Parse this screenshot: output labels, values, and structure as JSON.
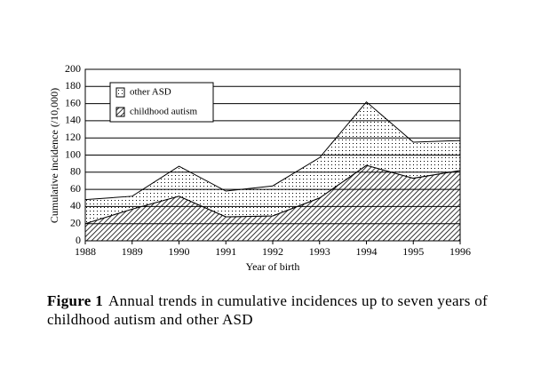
{
  "chart_data": {
    "type": "stacked-area",
    "y_label": "Cumulative incidence (/10,000)",
    "x_label": "Year of birth",
    "caption_label": "Figure 1",
    "title": "Annual trends in cumulative incidences up to seven years of childhood autism and other ASD",
    "x": [
      1988,
      1989,
      1990,
      1991,
      1992,
      1993,
      1994,
      1995,
      1996
    ],
    "series": [
      {
        "name": "childhood autism",
        "color": "#000000",
        "pattern": "hatch",
        "values": [
          20,
          37,
          52,
          28,
          29,
          50,
          88,
          73,
          82
        ]
      },
      {
        "name": "other ASD",
        "color": "#000000",
        "pattern": "dots",
        "values": [
          28,
          15,
          35,
          30,
          35,
          47,
          74,
          42,
          35
        ]
      }
    ],
    "xlim": [
      1988,
      1996
    ],
    "xticks": [
      1988,
      1989,
      1990,
      1991,
      1992,
      1993,
      1994,
      1995,
      1996
    ],
    "ylim": [
      0,
      200
    ],
    "yticks": [
      0,
      20,
      40,
      60,
      80,
      100,
      120,
      140,
      160,
      180,
      200
    ],
    "grid": true,
    "legend": "upper-left"
  }
}
